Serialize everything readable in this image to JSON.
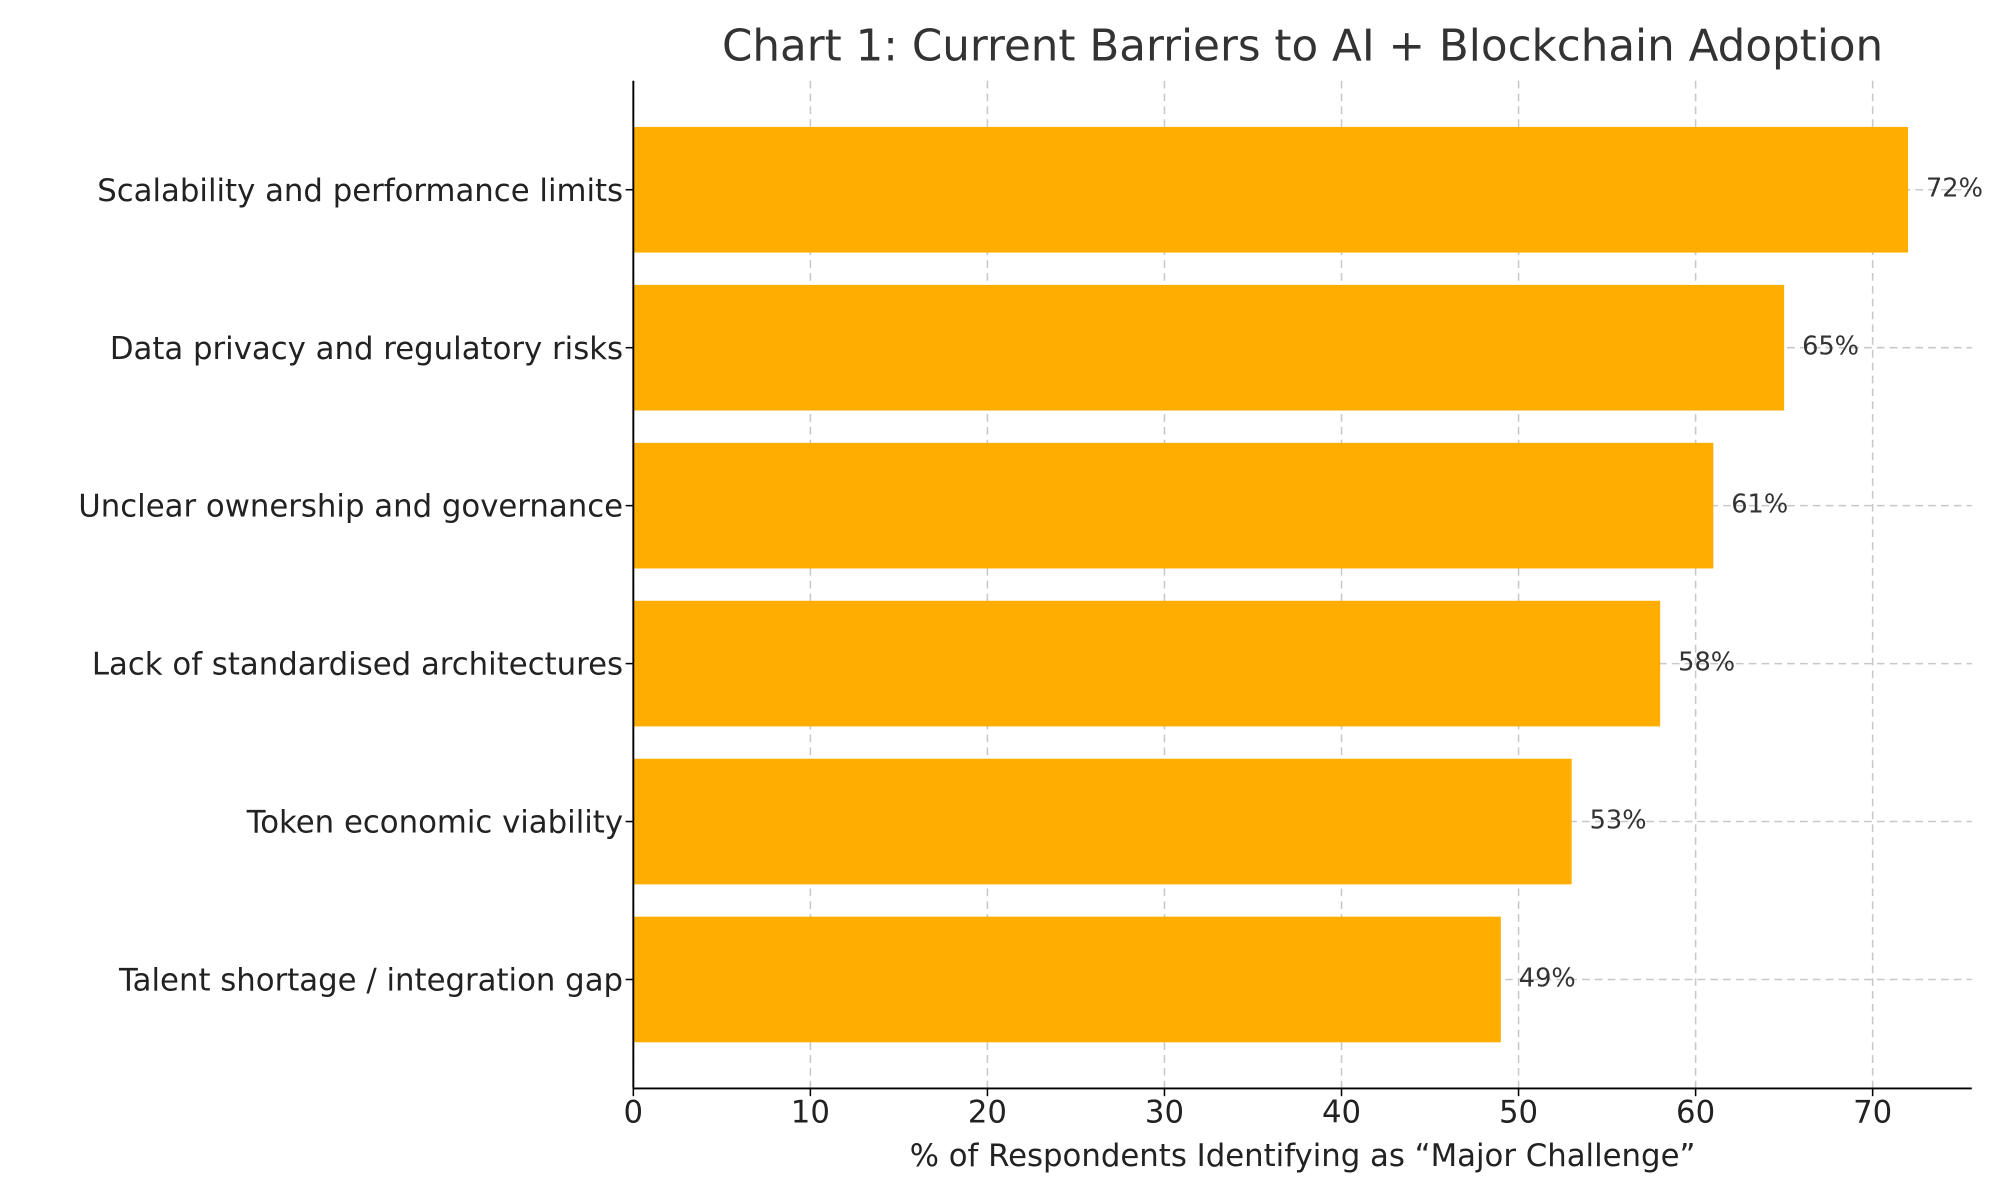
{
  "chart_data": {
    "type": "barh",
    "title": "Chart 1: Current Barriers to AI + Blockchain Adoption",
    "x_label": "% of Respondents Identifying as “Major Challenge”",
    "categories": [
      "Scalability and performance limits",
      "Data privacy and regulatory risks",
      "Unclear ownership and governance",
      "Lack of standardised architectures",
      "Token economic viability",
      "Talent shortage / integration gap"
    ],
    "values": [
      72,
      65,
      61,
      58,
      53,
      49
    ],
    "value_labels": [
      "72%",
      "65%",
      "61%",
      "58%",
      "53%",
      "49%"
    ],
    "color": "#ffae00",
    "xlim": [
      0,
      75.6
    ],
    "xticks": [
      0,
      10,
      20,
      30,
      40,
      50,
      60,
      70
    ],
    "grid": true
  }
}
